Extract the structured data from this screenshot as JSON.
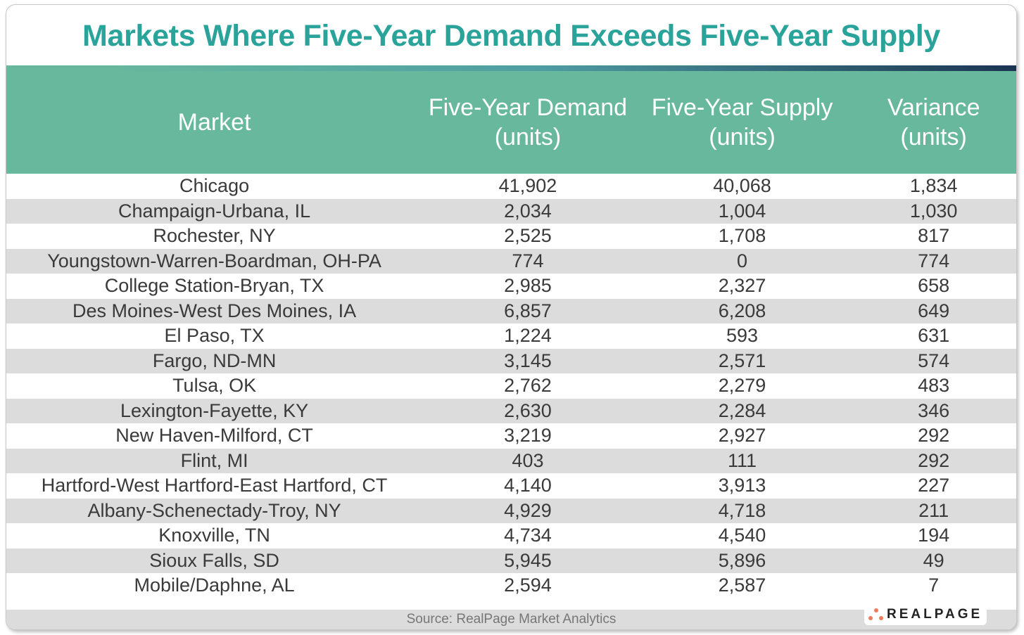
{
  "title": "Markets Where Five-Year Demand Exceeds Five-Year Supply",
  "columns": [
    [
      "Market"
    ],
    [
      "Five-Year Demand",
      "(units)"
    ],
    [
      "Five-Year Supply",
      "(units)"
    ],
    [
      "Variance",
      "(units)"
    ]
  ],
  "rows": [
    [
      "Chicago",
      "41,902",
      "40,068",
      "1,834"
    ],
    [
      "Champaign-Urbana, IL",
      "2,034",
      "1,004",
      "1,030"
    ],
    [
      "Rochester, NY",
      "2,525",
      "1,708",
      "817"
    ],
    [
      "Youngstown-Warren-Boardman, OH-PA",
      "774",
      "0",
      "774"
    ],
    [
      "College Station-Bryan, TX",
      "2,985",
      "2,327",
      "658"
    ],
    [
      "Des Moines-West Des Moines, IA",
      "6,857",
      "6,208",
      "649"
    ],
    [
      "El Paso, TX",
      "1,224",
      "593",
      "631"
    ],
    [
      "Fargo, ND-MN",
      "3,145",
      "2,571",
      "574"
    ],
    [
      "Tulsa, OK",
      "2,762",
      "2,279",
      "483"
    ],
    [
      "Lexington-Fayette, KY",
      "2,630",
      "2,284",
      "346"
    ],
    [
      "New Haven-Milford, CT",
      "3,219",
      "2,927",
      "292"
    ],
    [
      "Flint, MI",
      "403",
      "111",
      "292"
    ],
    [
      "Hartford-West Hartford-East Hartford, CT",
      "4,140",
      "3,913",
      "227"
    ],
    [
      "Albany-Schenectady-Troy, NY",
      "4,929",
      "4,718",
      "211"
    ],
    [
      "Knoxville, TN",
      "4,734",
      "4,540",
      "194"
    ],
    [
      "Sioux Falls, SD",
      "5,945",
      "5,896",
      "49"
    ],
    [
      "Mobile/Daphne, AL",
      "2,594",
      "2,587",
      "7"
    ]
  ],
  "source": "Source: RealPage Market Analytics",
  "logo": "REALPAGE",
  "colors": {
    "title": "#2aa39b",
    "header": "#68b89e",
    "stripe": "#dcdcdc",
    "logo_dots": "#ee7c5a"
  }
}
